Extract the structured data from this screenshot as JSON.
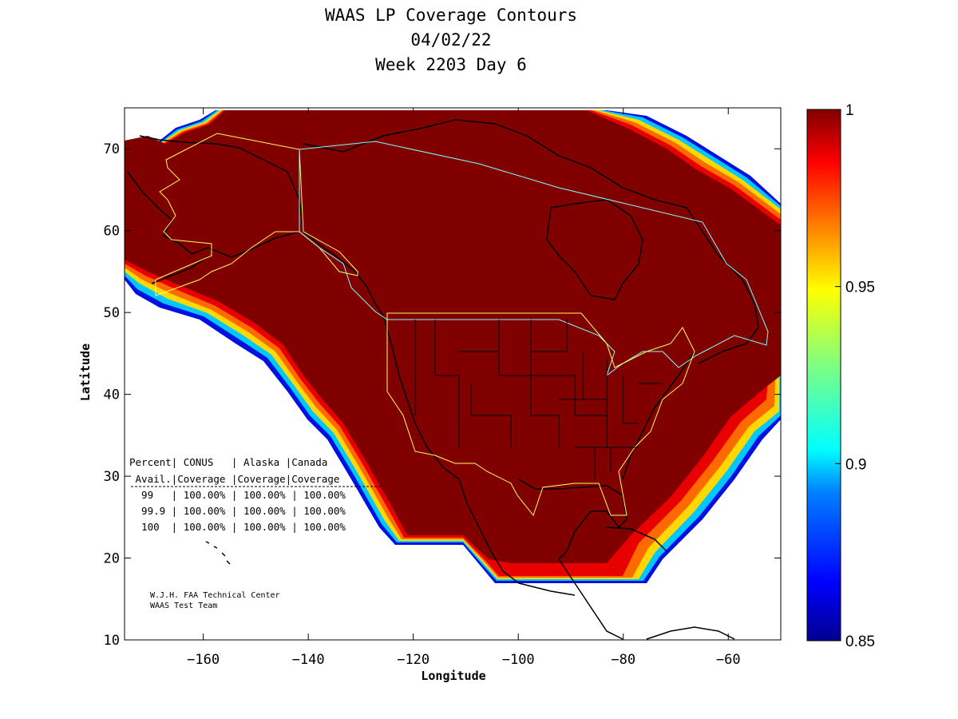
{
  "title_lines": [
    "WAAS LP Coverage Contours",
    "04/02/22",
    "Week 2203 Day 6"
  ],
  "chart_data": {
    "type": "heatmap",
    "xlabel": "Longitude",
    "ylabel": "Latitude",
    "xlim": [
      -175,
      -50
    ],
    "ylim": [
      10,
      75
    ],
    "x_ticks": [
      -160,
      -140,
      -120,
      -100,
      -80,
      -60
    ],
    "y_ticks": [
      10,
      20,
      30,
      40,
      50,
      60,
      70
    ],
    "colorbar": {
      "range": [
        0.85,
        1
      ],
      "ticks": [
        "1",
        "0.95",
        "0.9",
        "0.85"
      ],
      "colormap": [
        "#00008f",
        "#0000ff",
        "#0080ff",
        "#00ffff",
        "#80ff80",
        "#ffff00",
        "#ff8000",
        "#ff0000",
        "#800000"
      ]
    },
    "coverage_value_interior": 1.0
  },
  "table": {
    "header1": "Percent| CONUS   | Alaska |Canada",
    "header2": " Avail.|Coverage |Coverage|Coverage",
    "rows": [
      "  99   | 100.00% | 100.00% | 100.00%",
      "  99.9 | 100.00% | 100.00% | 100.00%",
      "  100  | 100.00% | 100.00% | 100.00%"
    ]
  },
  "credit": [
    "W.J.H. FAA Technical Center",
    "WAAS Test Team"
  ]
}
